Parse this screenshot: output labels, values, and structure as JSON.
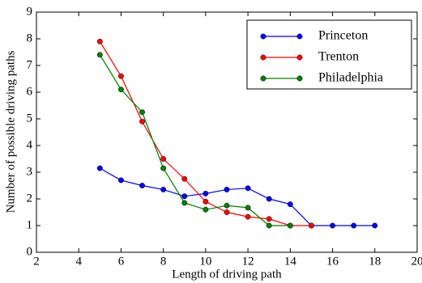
{
  "chart_data": {
    "type": "line",
    "xlabel": "Length of driving path",
    "ylabel": "Number of possible driving paths",
    "xlim": [
      2,
      20
    ],
    "xticks": [
      2,
      4,
      6,
      8,
      10,
      12,
      14,
      16,
      18,
      20
    ],
    "ylim": [
      0,
      9
    ],
    "yticks": [
      0,
      1,
      2,
      3,
      4,
      5,
      6,
      7,
      8,
      9
    ],
    "legend": "upper right",
    "series": [
      {
        "name": "Princeton",
        "color": "#0000ff",
        "x": [
          5,
          6,
          7,
          8,
          9,
          10,
          11,
          12,
          13,
          14,
          15,
          16,
          17,
          18
        ],
        "values": [
          3.15,
          2.7,
          2.5,
          2.35,
          2.1,
          2.2,
          2.35,
          2.4,
          2.0,
          1.8,
          1.0,
          1.0,
          1.0,
          1.0
        ]
      },
      {
        "name": "Trenton",
        "color": "#ff0000",
        "x": [
          5,
          6,
          7,
          8,
          9,
          10,
          11,
          12,
          13,
          14,
          15
        ],
        "values": [
          7.9,
          6.6,
          4.9,
          3.5,
          2.75,
          1.9,
          1.5,
          1.33,
          1.25,
          1.0,
          1.0
        ]
      },
      {
        "name": "Philadelphia",
        "color": "#008000",
        "x": [
          5,
          6,
          7,
          8,
          9,
          10,
          11,
          12,
          13,
          14
        ],
        "values": [
          7.4,
          6.1,
          5.25,
          3.15,
          1.85,
          1.6,
          1.75,
          1.67,
          1.0,
          1.0
        ]
      }
    ]
  }
}
